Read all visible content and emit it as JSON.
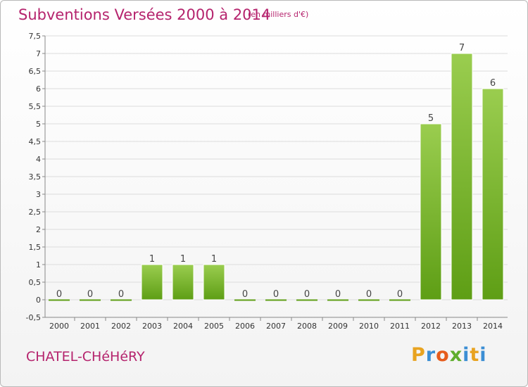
{
  "header": {
    "title": "Subventions Versées 2000 à 2014",
    "subtitle": "(en milliers d'€)"
  },
  "footer": {
    "commune": "CHATEL-CHéHéRY",
    "logo_letters": [
      "P",
      "r",
      "o",
      "x",
      "i",
      "t",
      "i"
    ],
    "logo_colors": [
      "#e8a320",
      "#3b8ed4",
      "#e65c1c",
      "#5fae2d",
      "#3b8ed4",
      "#e8a320",
      "#3b8ed4"
    ]
  },
  "chart_data": {
    "type": "bar",
    "title": "Subventions Versées 2000 à 2014",
    "subtitle": "(en milliers d'€)",
    "categories": [
      "2000",
      "2001",
      "2002",
      "2003",
      "2004",
      "2005",
      "2006",
      "2007",
      "2008",
      "2009",
      "2010",
      "2011",
      "2012",
      "2013",
      "2014"
    ],
    "values": [
      0,
      0,
      0,
      1,
      1,
      1,
      0,
      0,
      0,
      0,
      0,
      0,
      5,
      7,
      6
    ],
    "data_labels": [
      "0",
      "0",
      "0",
      "1",
      "1",
      "1",
      "0",
      "0",
      "0",
      "0",
      "0",
      "0",
      "5",
      "7",
      "6"
    ],
    "ylim": [
      -0.5,
      7.5
    ],
    "y_ticks": [
      "-0,5",
      "0",
      "0,5",
      "1",
      "1,5",
      "2",
      "2,5",
      "3",
      "3,5",
      "4",
      "4,5",
      "5",
      "5,5",
      "6",
      "6,5",
      "7",
      "7,5"
    ],
    "grid": true,
    "colors": {
      "bar_top": "#9acd4f",
      "bar_bottom": "#5e9e15",
      "grid": "#dcdcdc",
      "axis": "#888888"
    }
  }
}
